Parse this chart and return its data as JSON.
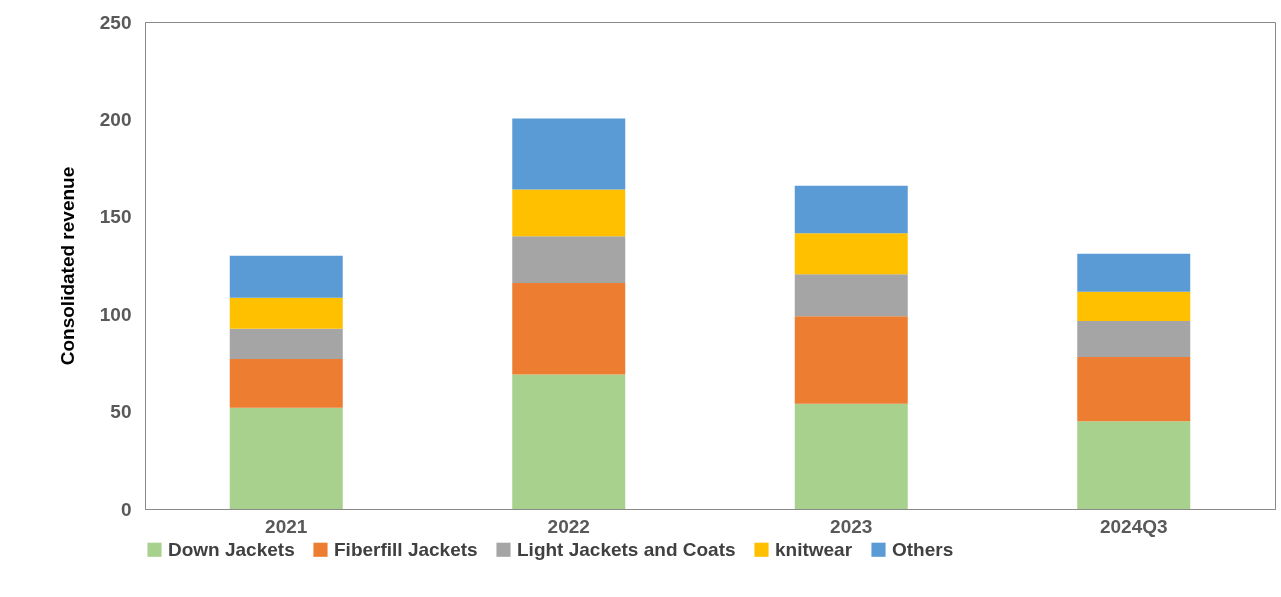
{
  "chart_data": {
    "type": "bar",
    "stacked": true,
    "ylabel": "Consolidated revenue",
    "categories": [
      "2021",
      "2022",
      "2023",
      "2024Q3"
    ],
    "series": [
      {
        "name": "Down Jackets",
        "color": "#a9d18e",
        "values": [
          52,
          69,
          54,
          45
        ]
      },
      {
        "name": "Fiberfill Jackets",
        "color": "#ed7d31",
        "values": [
          25,
          47,
          45,
          33
        ]
      },
      {
        "name": "Light Jackets and Coats",
        "color": "#a5a5a5",
        "values": [
          15.5,
          24,
          21.5,
          18.5
        ]
      },
      {
        "name": "knitwear",
        "color": "#ffc000",
        "values": [
          16,
          24,
          21,
          15
        ]
      },
      {
        "name": "Others",
        "color": "#5b9bd5",
        "values": [
          21.5,
          36.5,
          24.5,
          19.5
        ]
      }
    ],
    "ylim": [
      0,
      250
    ],
    "yticks": [
      0,
      50,
      100,
      150,
      200,
      250
    ],
    "grid": false,
    "legend": "bottom"
  }
}
